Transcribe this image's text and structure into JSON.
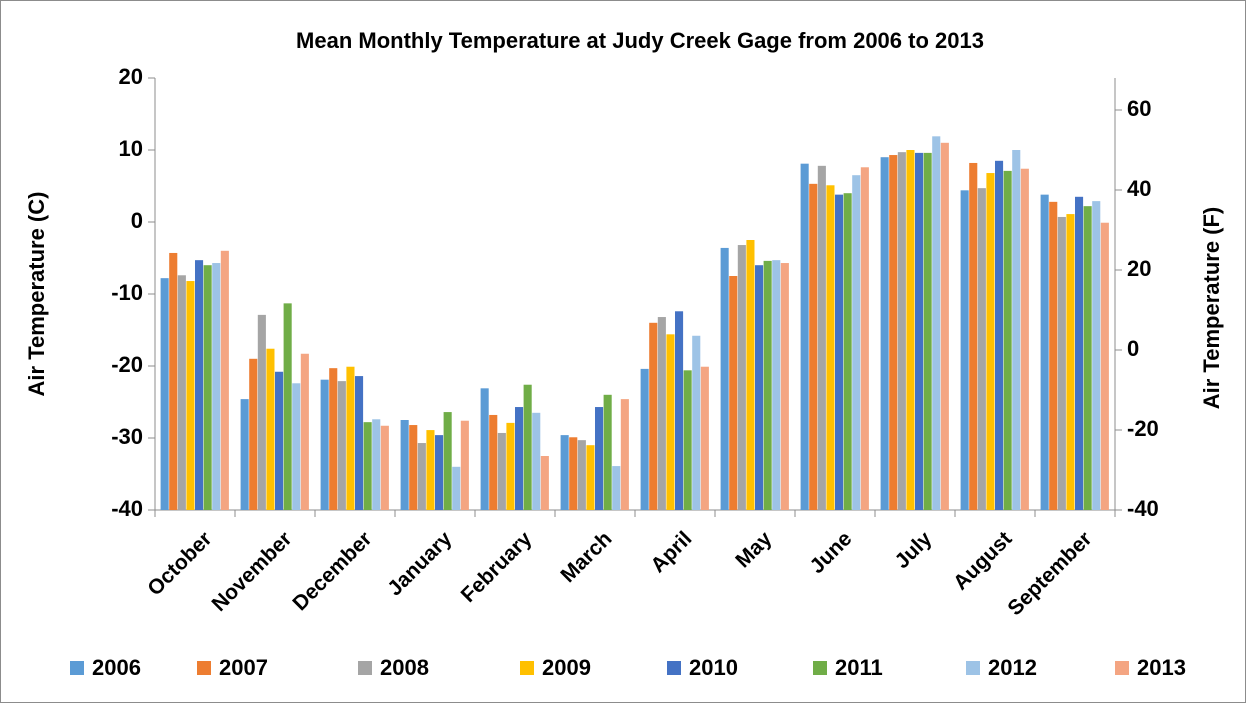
{
  "chart_data": {
    "type": "bar",
    "title": "Mean Monthly Temperature at Judy Creek Gage from 2006 to 2013",
    "ylabel": "Air Temperature (C)",
    "y2label": "Air Temperature (F)",
    "categories": [
      "October",
      "November",
      "December",
      "January",
      "February",
      "March",
      "April",
      "May",
      "June",
      "July",
      "August",
      "September"
    ],
    "ylim": [
      -40,
      20
    ],
    "yticks": [
      -40,
      -30,
      -20,
      -10,
      0,
      10,
      20
    ],
    "y2lim": [
      -40,
      68
    ],
    "y2ticks": [
      -40,
      -20,
      0,
      20,
      40,
      60
    ],
    "grid": false,
    "legend": "bottom",
    "series": [
      {
        "name": "2006",
        "color": "#5b9bd5",
        "values": [
          -7.8,
          -24.6,
          -21.9,
          -27.5,
          -23.1,
          -29.6,
          -20.4,
          -3.6,
          8.1,
          9.0,
          4.4,
          3.8
        ]
      },
      {
        "name": "2007",
        "color": "#ed7d31",
        "values": [
          -4.3,
          -19.0,
          -20.3,
          -28.2,
          -26.8,
          -29.9,
          -14.0,
          -7.5,
          5.3,
          9.3,
          8.2,
          2.8
        ]
      },
      {
        "name": "2008",
        "color": "#a5a5a5",
        "values": [
          -7.4,
          -12.9,
          -22.1,
          -30.7,
          -29.3,
          -30.3,
          -13.2,
          -3.2,
          7.8,
          9.7,
          4.7,
          0.7
        ]
      },
      {
        "name": "2009",
        "color": "#ffc000",
        "values": [
          -8.2,
          -17.6,
          -20.1,
          -28.9,
          -27.9,
          -31.0,
          -15.6,
          -2.5,
          5.1,
          10.0,
          6.8,
          1.1
        ]
      },
      {
        "name": "2010",
        "color": "#4472c4",
        "values": [
          -5.3,
          -20.8,
          -21.4,
          -29.6,
          -25.7,
          -25.7,
          -12.4,
          -6.0,
          3.8,
          9.6,
          8.5,
          3.5
        ]
      },
      {
        "name": "2011",
        "color": "#70ad47",
        "values": [
          -6.0,
          -11.3,
          -27.8,
          -26.4,
          -22.6,
          -24.0,
          -20.6,
          -5.4,
          4.0,
          9.6,
          7.1,
          2.2
        ]
      },
      {
        "name": "2012",
        "color": "#9dc3e6",
        "values": [
          -5.7,
          -22.4,
          -27.4,
          -34.0,
          -26.5,
          -33.9,
          -15.8,
          -5.3,
          6.5,
          11.9,
          10.0,
          2.9
        ]
      },
      {
        "name": "2013",
        "color": "#f4a582",
        "values": [
          -4.0,
          -18.3,
          -28.3,
          -27.6,
          -32.5,
          -24.6,
          -20.1,
          -5.7,
          7.6,
          11.0,
          7.4,
          -0.1
        ]
      }
    ]
  }
}
